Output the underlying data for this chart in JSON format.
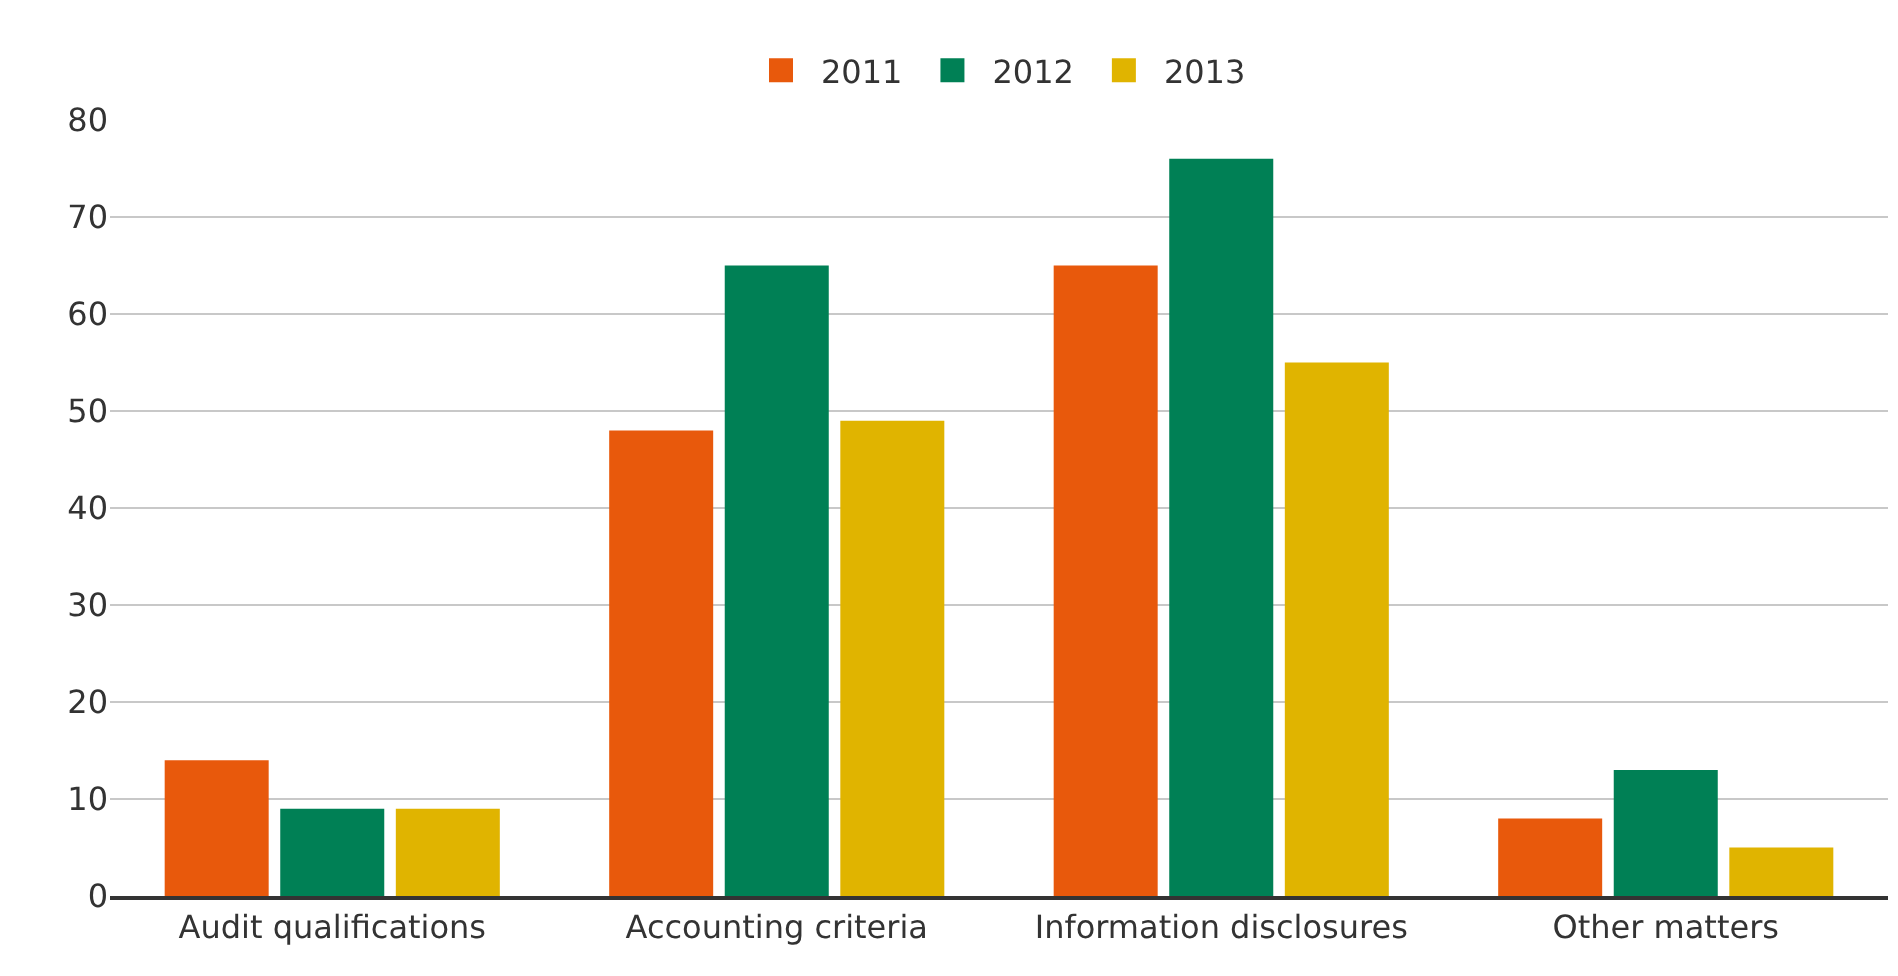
{
  "chart_data": {
    "type": "bar",
    "categories": [
      "Audit qualifications",
      "Accounting criteria",
      "Information disclosures",
      "Other matters"
    ],
    "series": [
      {
        "name": "2011",
        "color": "#e8590c",
        "values": [
          14,
          48,
          65,
          8
        ]
      },
      {
        "name": "2012",
        "color": "#008055",
        "values": [
          9,
          65,
          76,
          13
        ]
      },
      {
        "name": "2013",
        "color": "#e0b400",
        "values": [
          9,
          49,
          55,
          5
        ]
      }
    ],
    "ylim": [
      0,
      80
    ],
    "yticks": [
      0,
      10,
      20,
      30,
      40,
      50,
      60,
      70,
      80
    ],
    "grid": "y",
    "legend": "top"
  }
}
